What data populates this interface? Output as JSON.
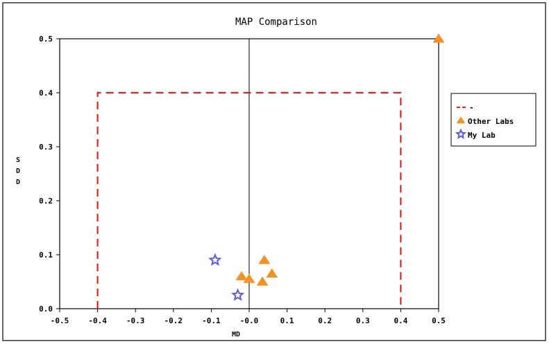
{
  "chart_data": {
    "type": "scatter",
    "title": "MAP Comparison",
    "xlabel": "MD",
    "ylabel": "SDD",
    "xlim": [
      -0.5,
      0.5
    ],
    "ylim": [
      0.0,
      0.5
    ],
    "x_ticks": [
      "-0.5",
      "-0.4",
      "-0.3",
      "-0.2",
      "-0.1",
      "-0.0",
      "0.1",
      "0.2",
      "0.3",
      "0.4",
      "0.5"
    ],
    "y_ticks": [
      "0.0",
      "0.1",
      "0.2",
      "0.3",
      "0.4",
      "0.5"
    ],
    "grid": false,
    "reference_line": {
      "x": 0.0,
      "color": "#000000"
    },
    "boundary": {
      "x_min": -0.4,
      "x_max": 0.4,
      "y_top": 0.4,
      "color": "#e8201c",
      "style": "dashed"
    },
    "legend": {
      "position": "right",
      "entries": [
        "-",
        "Other Labs",
        "My Lab"
      ]
    },
    "series": [
      {
        "name": "Other Labs",
        "marker": "triangle",
        "color": "#f7901e",
        "points": [
          {
            "x": -0.02,
            "y": 0.06
          },
          {
            "x": 0.0,
            "y": 0.055
          },
          {
            "x": 0.04,
            "y": 0.09
          },
          {
            "x": 0.035,
            "y": 0.05
          },
          {
            "x": 0.06,
            "y": 0.065
          },
          {
            "x": 0.5,
            "y": 0.5
          }
        ]
      },
      {
        "name": "My Lab",
        "marker": "star",
        "color": "#5b5bea",
        "points": [
          {
            "x": -0.09,
            "y": 0.09
          },
          {
            "x": -0.03,
            "y": 0.025
          }
        ]
      }
    ]
  }
}
